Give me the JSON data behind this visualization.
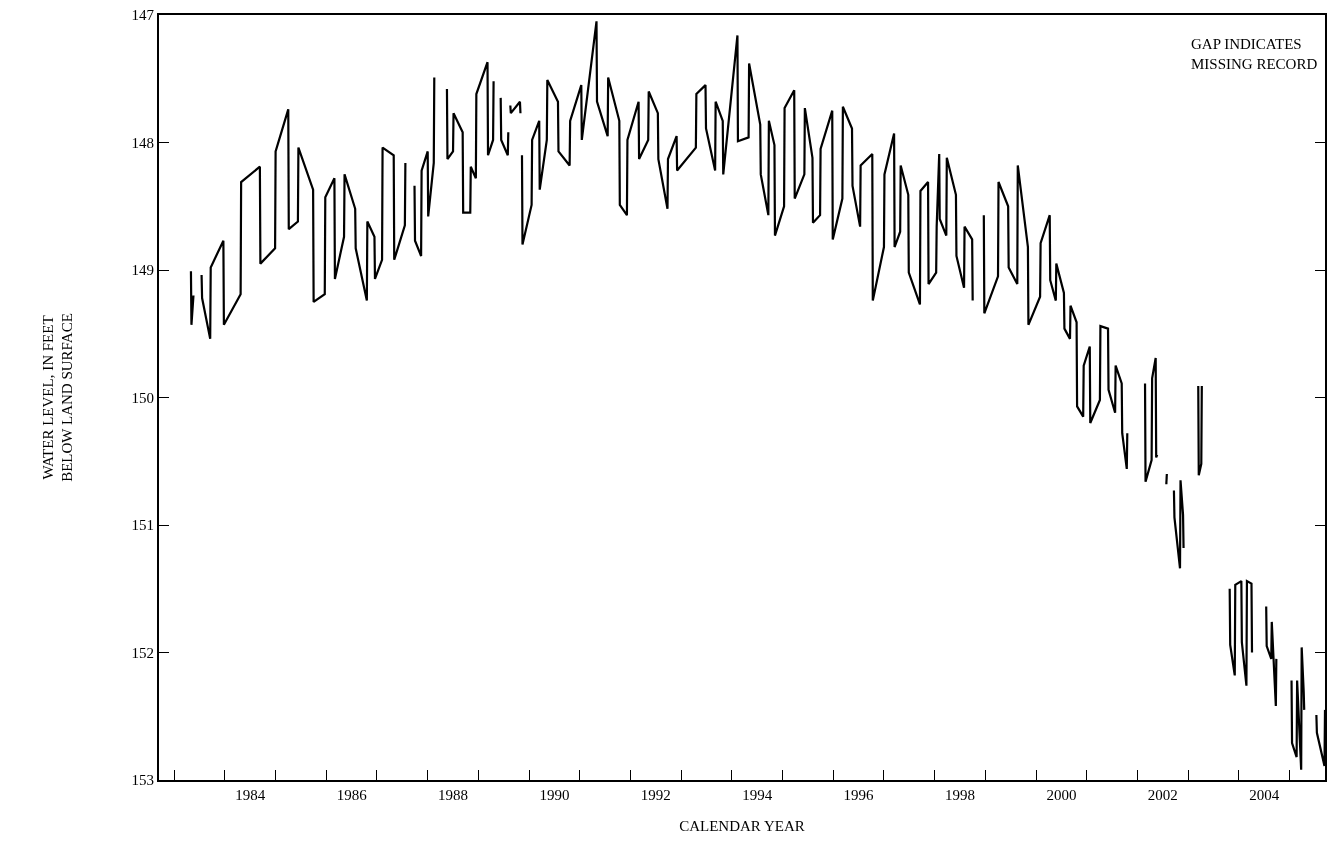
{
  "chart_data": {
    "type": "line",
    "xlabel": "CALENDAR YEAR",
    "ylabel": "WATER LEVEL, IN FEET\nBELOW LAND SURFACE",
    "annotations": [
      "GAP INDICATES\nMISSING RECORD"
    ],
    "xlim": [
      1982.7,
      2005.7
    ],
    "ylim": [
      153,
      147
    ],
    "yticks": [
      147,
      148,
      149,
      150,
      151,
      152,
      153
    ],
    "xticks": [
      {
        "value": 1983,
        "label": null
      },
      {
        "value": 1984,
        "label": null
      },
      {
        "value": 1985,
        "label": null
      },
      {
        "value": 1986,
        "label": null
      },
      {
        "value": 1987,
        "label": null
      },
      {
        "value": 1988,
        "label": null
      },
      {
        "value": 1989,
        "label": null
      },
      {
        "value": 1990,
        "label": null
      },
      {
        "value": 1991,
        "label": null
      },
      {
        "value": 1992,
        "label": null
      },
      {
        "value": 1993,
        "label": null
      },
      {
        "value": 1994,
        "label": null
      },
      {
        "value": 1995,
        "label": null
      },
      {
        "value": 1996,
        "label": null
      },
      {
        "value": 1997,
        "label": null
      },
      {
        "value": 1998,
        "label": null
      },
      {
        "value": 1999,
        "label": null
      },
      {
        "value": 2000,
        "label": null
      },
      {
        "value": 2001,
        "label": null
      },
      {
        "value": 2002,
        "label": null
      },
      {
        "value": 2003,
        "label": null
      },
      {
        "value": 2004,
        "label": null
      },
      {
        "value": 2005,
        "label": null
      },
      {
        "value": 1984.5,
        "label": "1984"
      },
      {
        "value": 1986.5,
        "label": "1986"
      },
      {
        "value": 1988.5,
        "label": "1988"
      },
      {
        "value": 1990.5,
        "label": "1990"
      },
      {
        "value": 1992.5,
        "label": "1992"
      },
      {
        "value": 1994.5,
        "label": "1994"
      },
      {
        "value": 1996.5,
        "label": "1996"
      },
      {
        "value": 1998.5,
        "label": "1998"
      },
      {
        "value": 2000.5,
        "label": "2000"
      },
      {
        "value": 2002.5,
        "label": "2002"
      },
      {
        "value": 2004.5,
        "label": "2004"
      }
    ],
    "series": [
      {
        "color": "#000000",
        "x": [
          1983.33,
          1983.34,
          1983.38,
          1983.45,
          1983.54,
          1983.55,
          1983.71,
          1983.72,
          1983.97,
          1983.98,
          1984.31,
          1984.32,
          1984.69,
          1984.7,
          1984.99,
          1985.0,
          1985.25,
          1985.26,
          1985.44,
          1985.45,
          1985.74,
          1985.75,
          1985.97,
          1985.98,
          1986.16,
          1986.17,
          1986.35,
          1986.36,
          1986.57,
          1986.58,
          1986.8,
          1986.81,
          1986.95,
          1986.96,
          1987.1,
          1987.11,
          1987.33,
          1987.34,
          1987.55,
          1987.56,
          1987.65,
          1987.74,
          1987.75,
          1987.87,
          1987.88,
          1988.0,
          1988.01,
          1988.12,
          1988.13,
          1988.25,
          1988.38,
          1988.39,
          1988.5,
          1988.51,
          1988.69,
          1988.7,
          1988.84,
          1988.85,
          1988.95,
          1988.96,
          1989.18,
          1989.19,
          1989.29,
          1989.3,
          1989.37,
          1989.44,
          1989.45,
          1989.58,
          1989.59,
          1989.61,
          1989.63,
          1989.64,
          1989.82,
          1989.83,
          1989.845,
          1989.86,
          1989.87,
          1990.05,
          1990.06,
          1990.2,
          1990.21,
          1990.35,
          1990.36,
          1990.57,
          1990.58,
          1990.8,
          1990.81,
          1991.03,
          1991.04,
          1991.33,
          1991.34,
          1991.55,
          1991.56,
          1991.78,
          1991.79,
          1991.93,
          1991.94,
          1992.16,
          1992.17,
          1992.35,
          1992.36,
          1992.54,
          1992.55,
          1992.73,
          1992.74,
          1992.91,
          1992.92,
          1993.29,
          1993.3,
          1993.48,
          1993.49,
          1993.67,
          1993.68,
          1993.82,
          1993.83,
          1994.11,
          1994.12,
          1994.33,
          1994.34,
          1994.56,
          1994.57,
          1994.72,
          1994.73,
          1994.84,
          1994.85,
          1995.03,
          1995.04,
          1995.23,
          1995.24,
          1995.43,
          1995.44,
          1995.59,
          1995.6,
          1995.74,
          1995.75,
          1995.98,
          1995.99,
          1996.18,
          1996.19,
          1996.37,
          1996.38,
          1996.53,
          1996.54,
          1996.77,
          1996.78,
          1997.0,
          1997.01,
          1997.2,
          1997.21,
          1997.32,
          1997.33,
          1997.48,
          1997.49,
          1997.71,
          1997.72,
          1997.87,
          1997.88,
          1998.03,
          1998.04,
          1998.09,
          1998.1,
          1998.23,
          1998.24,
          1998.42,
          1998.43,
          1998.58,
          1998.59,
          1998.74,
          1998.75,
          1998.85,
          1998.97,
          1998.98,
          1999.25,
          1999.26,
          1999.45,
          1999.46,
          1999.63,
          1999.64,
          1999.84,
          1999.85,
          2000.08,
          2000.09,
          2000.27,
          2000.28,
          2000.39,
          2000.4,
          2000.55,
          2000.56,
          2000.67,
          2000.68,
          2000.8,
          2000.81,
          2000.93,
          2000.94,
          2001.06,
          2001.07,
          2001.26,
          2001.27,
          2001.42,
          2001.43,
          2001.56,
          2001.57,
          2001.69,
          2001.7,
          2001.79,
          2001.8,
          2001.97,
          2002.15,
          2002.16,
          2002.28,
          2002.29,
          2002.36,
          2002.37,
          2002.39,
          2002.48,
          2002.57,
          2002.58,
          2002.65,
          2002.72,
          2002.73,
          2002.84,
          2002.85,
          2002.9,
          2002.91,
          2003.05,
          2003.2,
          2003.21,
          2003.26,
          2003.27,
          2003.55,
          2003.82,
          2003.83,
          2003.92,
          2003.93,
          2004.05,
          2004.06,
          2004.15,
          2004.16,
          2004.25,
          2004.26,
          2004.4,
          2004.54,
          2004.55,
          2004.64,
          2004.65,
          2004.73,
          2004.74,
          2004.9,
          2005.04,
          2005.05,
          2005.14,
          2005.15,
          2005.23,
          2005.24,
          2005.28,
          2005.29,
          2005.4,
          2005.53,
          2005.54,
          2005.69,
          2005.7
        ],
        "values": [
          149.01,
          149.43,
          149.2,
          null,
          149.04,
          149.22,
          149.54,
          148.98,
          148.77,
          149.43,
          149.19,
          148.31,
          148.19,
          148.95,
          148.83,
          148.07,
          147.74,
          148.68,
          148.62,
          148.04,
          148.37,
          149.25,
          149.19,
          148.43,
          148.28,
          149.07,
          148.74,
          148.25,
          148.52,
          148.83,
          149.24,
          148.62,
          148.74,
          149.07,
          148.92,
          148.04,
          148.1,
          148.92,
          148.65,
          148.16,
          null,
          148.34,
          148.77,
          148.89,
          148.22,
          148.07,
          148.58,
          148.16,
          147.49,
          null,
          147.58,
          148.13,
          148.07,
          147.77,
          147.92,
          148.55,
          148.55,
          148.19,
          148.28,
          147.62,
          147.37,
          148.1,
          147.98,
          147.52,
          null,
          147.65,
          147.98,
          148.1,
          147.92,
          null,
          147.71,
          147.77,
          147.68,
          147.77,
          null,
          148.1,
          148.8,
          148.49,
          147.98,
          147.83,
          148.37,
          147.98,
          147.51,
          147.68,
          148.07,
          148.18,
          147.83,
          147.55,
          147.98,
          147.05,
          147.68,
          147.95,
          147.49,
          147.83,
          148.49,
          148.57,
          147.98,
          147.68,
          148.13,
          147.98,
          147.6,
          147.77,
          148.13,
          148.52,
          148.13,
          147.95,
          148.22,
          148.04,
          147.62,
          147.55,
          147.89,
          148.22,
          147.68,
          147.83,
          148.25,
          147.16,
          147.99,
          147.96,
          147.38,
          147.86,
          148.25,
          148.57,
          147.83,
          148.02,
          148.73,
          148.5,
          147.73,
          147.59,
          148.44,
          148.25,
          147.73,
          148.12,
          148.63,
          148.57,
          148.05,
          147.75,
          148.76,
          148.44,
          147.72,
          147.89,
          148.34,
          148.66,
          148.18,
          148.09,
          149.24,
          148.82,
          148.25,
          147.93,
          148.82,
          148.7,
          148.18,
          148.41,
          149.02,
          149.27,
          148.38,
          148.31,
          149.11,
          149.02,
          148.66,
          148.09,
          148.6,
          148.73,
          148.12,
          148.41,
          148.89,
          149.14,
          148.66,
          148.76,
          149.24,
          null,
          148.57,
          149.34,
          149.05,
          148.31,
          148.5,
          148.98,
          149.11,
          148.18,
          148.82,
          149.43,
          149.21,
          148.79,
          148.57,
          149.08,
          149.24,
          148.95,
          149.18,
          149.46,
          149.54,
          149.28,
          149.41,
          150.07,
          150.15,
          149.75,
          149.6,
          150.2,
          150.02,
          149.44,
          149.46,
          149.94,
          150.12,
          149.75,
          149.89,
          150.28,
          150.56,
          150.28,
          null,
          149.89,
          150.66,
          150.49,
          149.85,
          149.69,
          150.47,
          150.45,
          null,
          150.68,
          150.6,
          null,
          150.73,
          150.94,
          151.34,
          150.65,
          150.92,
          151.18,
          null,
          149.91,
          150.61,
          150.52,
          149.91,
          null,
          151.5,
          151.94,
          152.18,
          151.47,
          151.44,
          151.92,
          152.26,
          151.44,
          151.46,
          152.0,
          null,
          151.64,
          151.95,
          152.05,
          151.76,
          152.42,
          152.05,
          null,
          152.22,
          152.71,
          152.82,
          152.22,
          152.92,
          151.96,
          152.31,
          152.45,
          null,
          152.49,
          152.63,
          152.89,
          152.45
        ]
      }
    ]
  }
}
